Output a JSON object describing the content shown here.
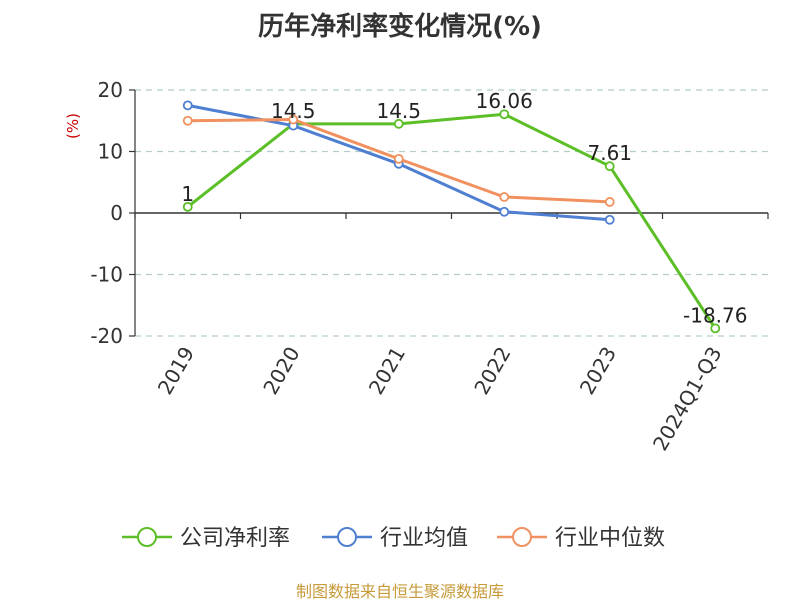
{
  "chart_data": {
    "type": "line",
    "title": "历年净利率变化情况(%)",
    "ylabel": "(%)",
    "xlabel": "",
    "categories": [
      "2019",
      "2020",
      "2021",
      "2022",
      "2023",
      "2024Q1-Q3"
    ],
    "ylim": [
      -20,
      20
    ],
    "yticks": [
      20,
      10,
      0,
      -10,
      -20
    ],
    "grid": true,
    "legend_position": "bottom",
    "series": [
      {
        "name": "公司净利率",
        "color": "#5cbf27",
        "labels": true,
        "values": [
          1,
          14.5,
          14.5,
          16.06,
          7.61,
          -18.76
        ]
      },
      {
        "name": "行业均值",
        "color": "#4f7fd1",
        "labels": false,
        "values": [
          17.5,
          14.2,
          8,
          0.2,
          -1.1,
          null
        ]
      },
      {
        "name": "行业中位数",
        "color": "#f0915f",
        "labels": false,
        "values": [
          15,
          15.2,
          8.8,
          2.6,
          1.8,
          null
        ]
      }
    ]
  },
  "footer": {
    "source": "制图数据来自恒生聚源数据库"
  }
}
